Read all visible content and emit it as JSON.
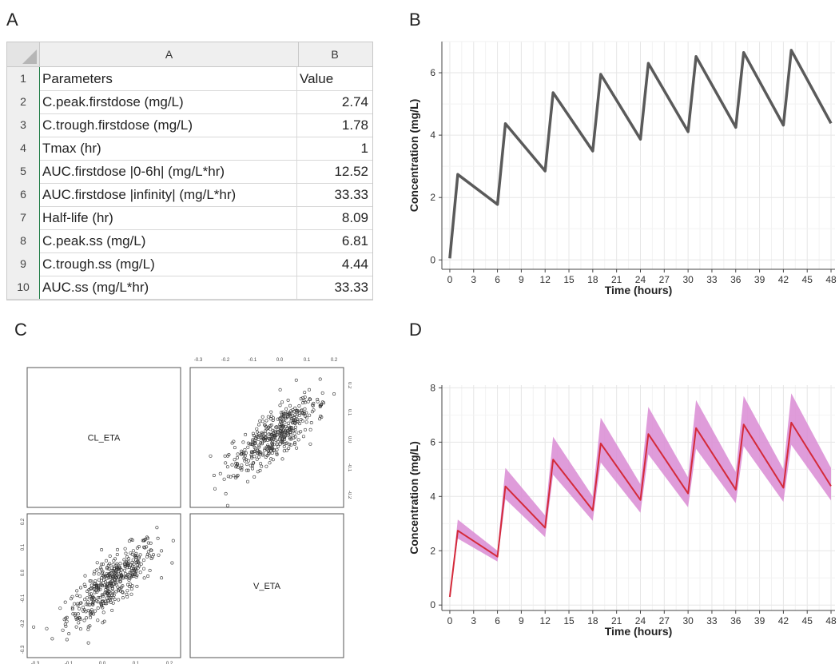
{
  "panels": {
    "a": "A",
    "b": "B",
    "c": "C",
    "d": "D"
  },
  "spreadsheet": {
    "col_a": "A",
    "col_b": "B",
    "rows": [
      {
        "num": "1",
        "param": "Parameters",
        "value": "Value"
      },
      {
        "num": "2",
        "param": "C.peak.firstdose (mg/L)",
        "value": "2.74"
      },
      {
        "num": "3",
        "param": "C.trough.firstdose (mg/L)",
        "value": "1.78"
      },
      {
        "num": "4",
        "param": "Tmax (hr)",
        "value": "1"
      },
      {
        "num": "5",
        "param": "AUC.firstdose |0-6h| (mg/L*hr)",
        "value": "12.52"
      },
      {
        "num": "6",
        "param": "AUC.firstdose |infinity| (mg/L*hr)",
        "value": "33.33"
      },
      {
        "num": "7",
        "param": "Half-life (hr)",
        "value": "8.09"
      },
      {
        "num": "8",
        "param": "C.peak.ss (mg/L)",
        "value": "6.81"
      },
      {
        "num": "9",
        "param": "C.trough.ss (mg/L)",
        "value": "4.44"
      },
      {
        "num": "10",
        "param": "AUC.ss (mg/L*hr)",
        "value": "33.33"
      }
    ]
  },
  "chart_data": [
    {
      "type": "line",
      "panel": "B",
      "xlabel": "Time (hours)",
      "ylabel": "Concentration (mg/L)",
      "xlim": [
        -1,
        48.5
      ],
      "ylim": [
        -0.3,
        7
      ],
      "xticks": [
        0,
        3,
        6,
        9,
        12,
        15,
        18,
        21,
        24,
        27,
        30,
        33,
        36,
        39,
        42,
        45,
        48
      ],
      "yticks": [
        0,
        2,
        4,
        6
      ],
      "grid": true,
      "line_color": "#5a5a5a",
      "series": [
        {
          "x": [
            0,
            1,
            6,
            7,
            12,
            13,
            18,
            19,
            24,
            25,
            30,
            31,
            36,
            37,
            42,
            43,
            48
          ],
          "y": [
            0.05,
            2.74,
            1.78,
            4.37,
            2.85,
            5.36,
            3.49,
            5.95,
            3.87,
            6.3,
            4.11,
            6.52,
            4.25,
            6.65,
            4.32,
            6.72,
            4.38
          ]
        }
      ]
    },
    {
      "type": "scatter",
      "panel": "C",
      "variables": [
        "CL_ETA",
        "V_ETA"
      ],
      "top_ticks": [
        "-0.3",
        "-0.2",
        "-0.1",
        "0.0",
        "0.1",
        "0.2"
      ],
      "right_ticks": [
        "0.2",
        "0.1",
        "0.0",
        "-0.1",
        "-0.2"
      ],
      "left_ticks": [
        "0.2",
        "0.1",
        "0.0",
        "-0.1",
        "-0.2",
        "-0.3"
      ],
      "bottom_ticks": [
        "-0.3",
        "-0.1",
        "0.0",
        "0.1",
        "0.2"
      ],
      "n_points": 420,
      "correlation": 0.8,
      "sd": 0.09
    },
    {
      "type": "area",
      "panel": "D",
      "xlabel": "Time (hours)",
      "ylabel": "Concentration (mg/L)",
      "xlim": [
        -1,
        48.5
      ],
      "ylim": [
        -0.2,
        8.1
      ],
      "xticks": [
        0,
        3,
        6,
        9,
        12,
        15,
        18,
        21,
        24,
        27,
        30,
        33,
        36,
        39,
        42,
        45,
        48
      ],
      "yticks": [
        0,
        2,
        4,
        6,
        8
      ],
      "grid": true,
      "line_color": "#d42a3a",
      "band_color": "#d98bd3",
      "series": [
        {
          "x": [
            0,
            1,
            6,
            7,
            12,
            13,
            18,
            19,
            24,
            25,
            30,
            31,
            36,
            37,
            42,
            43,
            48
          ],
          "y": [
            0.3,
            2.74,
            1.78,
            4.37,
            2.85,
            5.36,
            3.49,
            5.95,
            3.87,
            6.3,
            4.11,
            6.52,
            4.25,
            6.65,
            4.32,
            6.72,
            4.38
          ],
          "lower": [
            0.3,
            2.45,
            1.6,
            3.9,
            2.5,
            4.8,
            3.1,
            5.25,
            3.4,
            5.55,
            3.6,
            5.75,
            3.75,
            5.85,
            3.8,
            5.9,
            3.85
          ],
          "upper": [
            0.3,
            3.15,
            2.0,
            5.05,
            3.3,
            6.2,
            4.0,
            6.9,
            4.45,
            7.3,
            4.7,
            7.55,
            4.9,
            7.7,
            5.0,
            7.8,
            5.05
          ]
        }
      ]
    }
  ]
}
